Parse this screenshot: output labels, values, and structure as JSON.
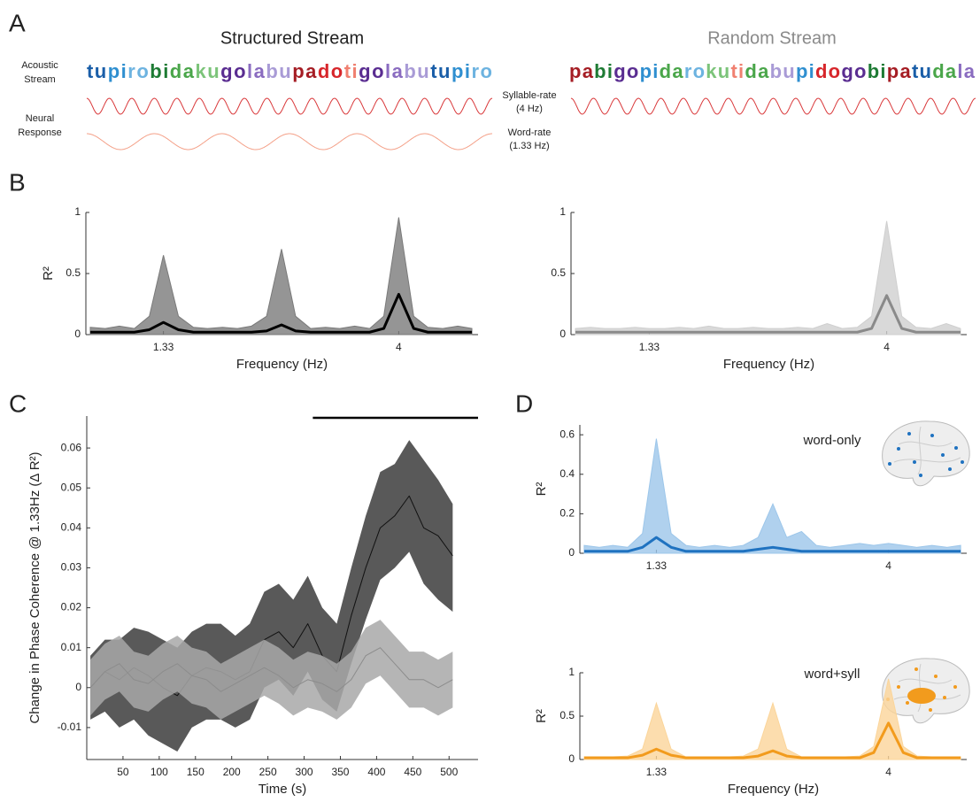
{
  "panel_labels": [
    "A",
    "B",
    "C",
    "D"
  ],
  "streams": {
    "structured": {
      "title": "Structured Stream",
      "syllables": [
        {
          "text": "tu",
          "color": "#1a5ea8"
        },
        {
          "text": "pi",
          "color": "#2f8fd0"
        },
        {
          "text": "ro",
          "color": "#6db3e0"
        },
        {
          "text": "bi",
          "color": "#1e7b34"
        },
        {
          "text": "da",
          "color": "#4aa64a"
        },
        {
          "text": "ku",
          "color": "#7cc47a"
        },
        {
          "text": "go",
          "color": "#5a2d91"
        },
        {
          "text": "la",
          "color": "#8a6cc0"
        },
        {
          "text": "bu",
          "color": "#a99bd6"
        },
        {
          "text": "pa",
          "color": "#a51d24"
        },
        {
          "text": "do",
          "color": "#d7262b"
        },
        {
          "text": "ti",
          "color": "#f08070"
        },
        {
          "text": "go",
          "color": "#5a2d91"
        },
        {
          "text": "la",
          "color": "#8a6cc0"
        },
        {
          "text": "bu",
          "color": "#a99bd6"
        },
        {
          "text": "tu",
          "color": "#1a5ea8"
        },
        {
          "text": "pi",
          "color": "#2f8fd0"
        },
        {
          "text": "ro",
          "color": "#6db3e0"
        }
      ]
    },
    "random": {
      "title": "Random Stream",
      "syllables": [
        {
          "text": "pa",
          "color": "#a51d24"
        },
        {
          "text": "bi",
          "color": "#1e7b34"
        },
        {
          "text": "go",
          "color": "#5a2d91"
        },
        {
          "text": "pi",
          "color": "#2f8fd0"
        },
        {
          "text": "da",
          "color": "#4aa64a"
        },
        {
          "text": "ro",
          "color": "#6db3e0"
        },
        {
          "text": "ku",
          "color": "#7cc47a"
        },
        {
          "text": "ti",
          "color": "#f08070"
        },
        {
          "text": "da",
          "color": "#4aa64a"
        },
        {
          "text": "bu",
          "color": "#a99bd6"
        },
        {
          "text": "pi",
          "color": "#2f8fd0"
        },
        {
          "text": "do",
          "color": "#d7262b"
        },
        {
          "text": "go",
          "color": "#5a2d91"
        },
        {
          "text": "bi",
          "color": "#1e7b34"
        },
        {
          "text": "pa",
          "color": "#a51d24"
        },
        {
          "text": "tu",
          "color": "#1a5ea8"
        },
        {
          "text": "da",
          "color": "#4aa64a"
        },
        {
          "text": "la",
          "color": "#8a6cc0"
        }
      ]
    },
    "acoustic_label": [
      "Acoustic",
      "Stream"
    ],
    "neural_label": [
      "Neural",
      "Response"
    ],
    "syllable_rate_label": [
      "Syllable-rate",
      "(4 Hz)"
    ],
    "word_rate_label": [
      "Word-rate",
      "(1.33 Hz)"
    ]
  },
  "chart_data": [
    {
      "type": "line",
      "ylabel": "R²",
      "xlabel": "Frequency (Hz)",
      "x": [
        0.5,
        0.67,
        0.83,
        1,
        1.17,
        1.33,
        1.5,
        1.67,
        1.83,
        2,
        2.17,
        2.33,
        2.5,
        2.67,
        2.83,
        3,
        3.17,
        3.33,
        3.5,
        3.67,
        3.83,
        4,
        4.17,
        4.33,
        4.5,
        4.67,
        4.83
      ],
      "xlim": [
        0.45,
        4.9
      ],
      "xticks": [
        1.33,
        4
      ],
      "ylim": [
        0,
        1
      ],
      "yticks": [
        0,
        0.5,
        1
      ],
      "series": [
        {
          "color": "#7a7a7a",
          "style": "area",
          "values": [
            0.06,
            0.05,
            0.07,
            0.05,
            0.15,
            0.65,
            0.15,
            0.06,
            0.05,
            0.06,
            0.05,
            0.07,
            0.15,
            0.7,
            0.15,
            0.05,
            0.06,
            0.05,
            0.07,
            0.05,
            0.15,
            0.96,
            0.15,
            0.06,
            0.05,
            0.07,
            0.05
          ]
        },
        {
          "color": "#000000",
          "style": "line",
          "values": [
            0.02,
            0.02,
            0.02,
            0.02,
            0.04,
            0.1,
            0.04,
            0.02,
            0.02,
            0.02,
            0.02,
            0.02,
            0.03,
            0.08,
            0.03,
            0.02,
            0.02,
            0.02,
            0.02,
            0.02,
            0.05,
            0.33,
            0.05,
            0.02,
            0.02,
            0.02,
            0.02
          ]
        }
      ]
    },
    {
      "type": "line",
      "xlabel": "Frequency (Hz)",
      "x": [
        0.5,
        0.67,
        0.83,
        1,
        1.17,
        1.33,
        1.5,
        1.67,
        1.83,
        2,
        2.17,
        2.33,
        2.5,
        2.67,
        2.83,
        3,
        3.17,
        3.33,
        3.5,
        3.67,
        3.83,
        4,
        4.17,
        4.33,
        4.5,
        4.67,
        4.83
      ],
      "xlim": [
        0.45,
        4.9
      ],
      "xticks": [
        1.33,
        4
      ],
      "ylim": [
        0,
        1
      ],
      "yticks": [
        0,
        0.5,
        1
      ],
      "series": [
        {
          "color": "#cfcfcf",
          "style": "area",
          "values": [
            0.05,
            0.06,
            0.05,
            0.05,
            0.06,
            0.05,
            0.05,
            0.06,
            0.05,
            0.07,
            0.05,
            0.05,
            0.06,
            0.05,
            0.05,
            0.06,
            0.05,
            0.09,
            0.05,
            0.06,
            0.15,
            0.93,
            0.15,
            0.06,
            0.05,
            0.09,
            0.05
          ]
        },
        {
          "color": "#8a8a8a",
          "style": "line",
          "values": [
            0.02,
            0.02,
            0.02,
            0.02,
            0.02,
            0.02,
            0.02,
            0.02,
            0.02,
            0.02,
            0.02,
            0.02,
            0.02,
            0.02,
            0.02,
            0.02,
            0.02,
            0.02,
            0.02,
            0.02,
            0.05,
            0.32,
            0.05,
            0.02,
            0.02,
            0.02,
            0.02
          ]
        }
      ]
    },
    {
      "type": "line",
      "ylabel": "Change in Phase Coherence @ 1.33Hz (Δ R²)",
      "xlabel": "Time (s)",
      "x": [
        5,
        25,
        45,
        65,
        85,
        105,
        125,
        145,
        165,
        185,
        205,
        225,
        245,
        265,
        285,
        305,
        325,
        345,
        365,
        385,
        405,
        425,
        445,
        465,
        485,
        505
      ],
      "xlim": [
        0,
        540
      ],
      "xticks": [
        50,
        100,
        150,
        200,
        250,
        300,
        350,
        400,
        450,
        500
      ],
      "ylim": [
        -0.018,
        0.068
      ],
      "yticks": [
        -0.01,
        0,
        0.01,
        0.02,
        0.03,
        0.04,
        0.05,
        0.06
      ],
      "significance_bar": [
        312,
        540
      ],
      "series": [
        {
          "color": "#111111",
          "style": "line",
          "band_color": "#3c3c3c",
          "values": [
            0,
            0.004,
            0.002,
            0.005,
            0.003,
            0,
            -0.002,
            0.003,
            0.005,
            0.004,
            0.002,
            0.004,
            0.012,
            0.014,
            0.01,
            0.016,
            0.008,
            0.004,
            0.018,
            0.03,
            0.04,
            0.043,
            0.048,
            0.04,
            0.038,
            0.033
          ],
          "lower": [
            -0.008,
            -0.006,
            -0.01,
            -0.008,
            -0.012,
            -0.014,
            -0.016,
            -0.01,
            -0.008,
            -0.008,
            -0.01,
            -0.008,
            0,
            0.002,
            -0.002,
            0.004,
            -0.003,
            -0.006,
            0.006,
            0.017,
            0.027,
            0.03,
            0.034,
            0.026,
            0.022,
            0.019
          ],
          "upper": [
            0.008,
            0.012,
            0.012,
            0.015,
            0.014,
            0.012,
            0.01,
            0.014,
            0.016,
            0.016,
            0.013,
            0.016,
            0.024,
            0.026,
            0.022,
            0.028,
            0.02,
            0.016,
            0.03,
            0.043,
            0.054,
            0.056,
            0.062,
            0.057,
            0.052,
            0.046
          ]
        },
        {
          "color": "#8c8c8c",
          "style": "line",
          "band_color": "#a8a8a8",
          "values": [
            0,
            0.004,
            0.006,
            0.002,
            0.001,
            0.004,
            0.006,
            0.003,
            0.002,
            -0.001,
            0.001,
            0.003,
            0.005,
            0.003,
            0,
            0.002,
            0.001,
            -0.001,
            0.002,
            0.008,
            0.01,
            0.006,
            0.002,
            0.002,
            0,
            0.002
          ],
          "lower": [
            -0.007,
            -0.003,
            -0.001,
            -0.005,
            -0.006,
            -0.003,
            -0.001,
            -0.004,
            -0.005,
            -0.008,
            -0.006,
            -0.004,
            -0.002,
            -0.004,
            -0.007,
            -0.005,
            -0.006,
            -0.008,
            -0.005,
            0.001,
            0.003,
            -0.001,
            -0.005,
            -0.005,
            -0.007,
            -0.005
          ],
          "upper": [
            0.007,
            0.011,
            0.013,
            0.009,
            0.008,
            0.011,
            0.013,
            0.01,
            0.009,
            0.006,
            0.008,
            0.01,
            0.012,
            0.01,
            0.007,
            0.009,
            0.008,
            0.006,
            0.009,
            0.015,
            0.017,
            0.013,
            0.009,
            0.009,
            0.007,
            0.009
          ]
        }
      ]
    },
    {
      "type": "line",
      "ylabel": "R²",
      "annotation": "word-only",
      "x": [
        0.5,
        0.67,
        0.83,
        1,
        1.17,
        1.33,
        1.5,
        1.67,
        1.83,
        2,
        2.17,
        2.33,
        2.5,
        2.67,
        2.83,
        3,
        3.17,
        3.33,
        3.5,
        3.67,
        3.83,
        4,
        4.17,
        4.33,
        4.5,
        4.67,
        4.83
      ],
      "xlim": [
        0.45,
        4.9
      ],
      "xticks": [
        1.33,
        4
      ],
      "ylim": [
        0,
        0.65
      ],
      "yticks": [
        0,
        0.2,
        0.4,
        0.6
      ],
      "series": [
        {
          "color": "#9cc6ea",
          "style": "area",
          "values": [
            0.04,
            0.03,
            0.04,
            0.03,
            0.1,
            0.58,
            0.1,
            0.04,
            0.03,
            0.04,
            0.03,
            0.04,
            0.08,
            0.25,
            0.08,
            0.11,
            0.04,
            0.03,
            0.04,
            0.05,
            0.04,
            0.05,
            0.04,
            0.03,
            0.04,
            0.03,
            0.04
          ]
        },
        {
          "color": "#1f72c0",
          "style": "line",
          "values": [
            0.01,
            0.01,
            0.01,
            0.01,
            0.03,
            0.08,
            0.03,
            0.01,
            0.01,
            0.01,
            0.01,
            0.01,
            0.02,
            0.03,
            0.02,
            0.01,
            0.01,
            0.01,
            0.01,
            0.01,
            0.01,
            0.01,
            0.01,
            0.01,
            0.01,
            0.01,
            0.01
          ]
        }
      ]
    },
    {
      "type": "line",
      "ylabel": "R²",
      "xlabel": "Frequency (Hz)",
      "annotation": "word+syll",
      "x": [
        0.5,
        0.67,
        0.83,
        1,
        1.17,
        1.33,
        1.5,
        1.67,
        1.83,
        2,
        2.17,
        2.33,
        2.5,
        2.67,
        2.83,
        3,
        3.17,
        3.33,
        3.5,
        3.67,
        3.83,
        4,
        4.17,
        4.33,
        4.5,
        4.67,
        4.83
      ],
      "xlim": [
        0.45,
        4.9
      ],
      "xticks": [
        1.33,
        4
      ],
      "ylim": [
        0,
        1
      ],
      "yticks": [
        0,
        0.5,
        1
      ],
      "series": [
        {
          "color": "#fbd59a",
          "style": "area",
          "values": [
            0.03,
            0.03,
            0.03,
            0.04,
            0.12,
            0.65,
            0.12,
            0.03,
            0.03,
            0.03,
            0.03,
            0.04,
            0.12,
            0.65,
            0.12,
            0.03,
            0.03,
            0.03,
            0.03,
            0.04,
            0.15,
            0.93,
            0.15,
            0.04,
            0.03,
            0.03,
            0.03
          ]
        },
        {
          "color": "#f29b1d",
          "style": "line",
          "values": [
            0.02,
            0.02,
            0.02,
            0.02,
            0.05,
            0.12,
            0.05,
            0.02,
            0.02,
            0.02,
            0.02,
            0.02,
            0.04,
            0.1,
            0.04,
            0.02,
            0.02,
            0.02,
            0.02,
            0.02,
            0.08,
            0.42,
            0.08,
            0.02,
            0.02,
            0.02,
            0.02
          ]
        }
      ]
    }
  ]
}
